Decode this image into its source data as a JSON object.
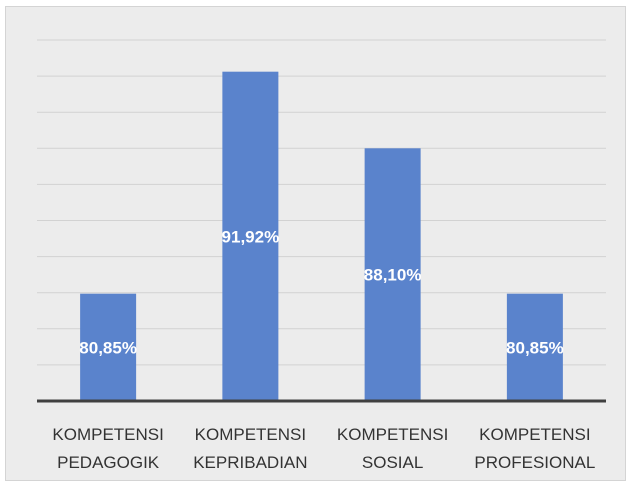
{
  "chart_data": {
    "type": "bar",
    "categories": [
      [
        "KOMPETENSI",
        "PEDAGOGIK"
      ],
      [
        "KOMPETENSI",
        "KEPRIBADIAN"
      ],
      [
        "KOMPETENSI",
        "SOSIAL"
      ],
      [
        "KOMPETENSI",
        "PROFESIONAL"
      ]
    ],
    "values": [
      80.85,
      91.92,
      88.1,
      80.85
    ],
    "data_labels": [
      "80,85%",
      "91,92%",
      "88,10%",
      "80,85%"
    ],
    "ylim": [
      75.5,
      93.5
    ],
    "grid": true,
    "y_axis_labels_visible": false,
    "bar_color": "#5a83cc",
    "title": "",
    "xlabel": "",
    "ylabel": ""
  }
}
